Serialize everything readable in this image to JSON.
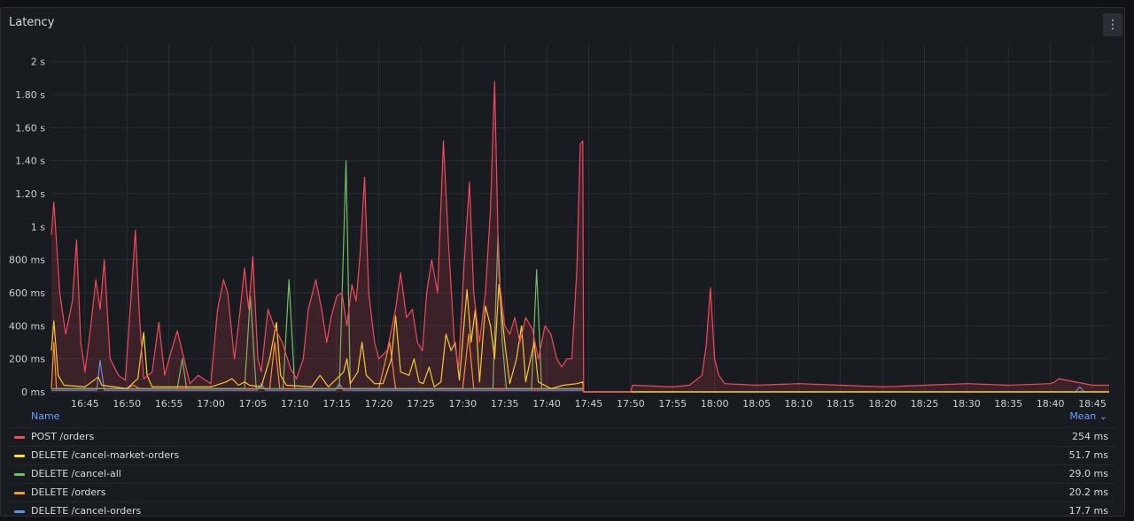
{
  "panel": {
    "title": "Latency",
    "menu_icon": "kebab-menu-icon"
  },
  "legend": {
    "name_header": "Name",
    "mean_header": "Mean ⌄"
  },
  "chart_data": {
    "type": "line",
    "title": "Latency",
    "y_unit": "s",
    "ylim": [
      0,
      2.1
    ],
    "y_ticks": [
      0,
      0.2,
      0.4,
      0.6,
      0.8,
      1.0,
      1.2,
      1.4,
      1.6,
      1.8,
      2.0
    ],
    "y_tick_labels": [
      "0 ms",
      "200 ms",
      "400 ms",
      "600 ms",
      "800 ms",
      "1 s",
      "1.20 s",
      "1.40 s",
      "1.60 s",
      "1.80 s",
      "2 s"
    ],
    "xlim": [
      "16:41",
      "18:47"
    ],
    "x_ticks": [
      "16:45",
      "16:50",
      "16:55",
      "17:00",
      "17:05",
      "17:10",
      "17:15",
      "17:20",
      "17:25",
      "17:30",
      "17:35",
      "17:40",
      "17:45",
      "17:50",
      "17:55",
      "18:00",
      "18:05",
      "18:10",
      "18:15",
      "18:20",
      "18:25",
      "18:30",
      "18:35",
      "18:40",
      "18:45"
    ],
    "grid": true,
    "legend_position": "bottom",
    "series": [
      {
        "name": "POST /orders",
        "color": "#f2495c",
        "mean": "254 ms",
        "fill": true,
        "points": [
          [
            "16:41",
            0.95
          ],
          [
            "16:41.3",
            1.15
          ],
          [
            "16:42",
            0.6
          ],
          [
            "16:42.7",
            0.35
          ],
          [
            "16:43.5",
            0.55
          ],
          [
            "16:44",
            0.92
          ],
          [
            "16:44.5",
            0.3
          ],
          [
            "16:45",
            0.12
          ],
          [
            "16:45.7",
            0.4
          ],
          [
            "16:46.3",
            0.68
          ],
          [
            "16:46.8",
            0.5
          ],
          [
            "16:47.3",
            0.8
          ],
          [
            "16:48",
            0.2
          ],
          [
            "16:49",
            0.1
          ],
          [
            "16:49.8",
            0.07
          ],
          [
            "16:50.5",
            0.58
          ],
          [
            "16:51",
            0.98
          ],
          [
            "16:51.5",
            0.45
          ],
          [
            "16:52",
            0.08
          ],
          [
            "16:53",
            0.12
          ],
          [
            "16:53.8",
            0.42
          ],
          [
            "16:54.5",
            0.1
          ],
          [
            "16:55.3",
            0.25
          ],
          [
            "16:56",
            0.37
          ],
          [
            "16:56.8",
            0.2
          ],
          [
            "16:57.5",
            0.05
          ],
          [
            "16:58.5",
            0.1
          ],
          [
            "17:00",
            0.05
          ],
          [
            "17:00.8",
            0.5
          ],
          [
            "17:01.5",
            0.68
          ],
          [
            "17:02",
            0.6
          ],
          [
            "17:02.8",
            0.2
          ],
          [
            "17:03.5",
            0.5
          ],
          [
            "17:04",
            0.75
          ],
          [
            "17:04.5",
            0.5
          ],
          [
            "17:05",
            0.82
          ],
          [
            "17:05.6",
            0.2
          ],
          [
            "17:06",
            0.12
          ],
          [
            "17:06.8",
            0.5
          ],
          [
            "17:07.5",
            0.4
          ],
          [
            "17:08.5",
            0.3
          ],
          [
            "17:09.5",
            0.14
          ],
          [
            "17:10.2",
            0.08
          ],
          [
            "17:11",
            0.2
          ],
          [
            "17:11.6",
            0.5
          ],
          [
            "17:12.5",
            0.68
          ],
          [
            "17:13.2",
            0.5
          ],
          [
            "17:13.8",
            0.3
          ],
          [
            "17:14.3",
            0.45
          ],
          [
            "17:15",
            0.58
          ],
          [
            "17:15.6",
            0.6
          ],
          [
            "17:16.2",
            0.4
          ],
          [
            "17:16.8",
            0.65
          ],
          [
            "17:17.3",
            0.55
          ],
          [
            "17:17.8",
            0.85
          ],
          [
            "17:18.3",
            1.3
          ],
          [
            "17:18.8",
            0.6
          ],
          [
            "17:19.5",
            0.3
          ],
          [
            "17:20",
            0.2
          ],
          [
            "17:21",
            0.25
          ],
          [
            "17:22",
            0.5
          ],
          [
            "17:22.6",
            0.72
          ],
          [
            "17:23.3",
            0.45
          ],
          [
            "17:24",
            0.5
          ],
          [
            "17:24.6",
            0.3
          ],
          [
            "17:25.2",
            0.25
          ],
          [
            "17:25.7",
            0.6
          ],
          [
            "17:26.3",
            0.8
          ],
          [
            "17:27",
            0.6
          ],
          [
            "17:27.7",
            1.52
          ],
          [
            "17:28.3",
            0.9
          ],
          [
            "17:29",
            0.3
          ],
          [
            "17:29.5",
            0.15
          ],
          [
            "17:30.2",
            0.8
          ],
          [
            "17:30.8",
            1.27
          ],
          [
            "17:31.3",
            0.6
          ],
          [
            "17:32",
            0.3
          ],
          [
            "17:32.7",
            0.6
          ],
          [
            "17:33.3",
            1.1
          ],
          [
            "17:33.8",
            1.88
          ],
          [
            "17:34.3",
            0.7
          ],
          [
            "17:35",
            0.4
          ],
          [
            "17:35.6",
            0.35
          ],
          [
            "17:36.2",
            0.45
          ],
          [
            "17:36.8",
            0.3
          ],
          [
            "17:37.5",
            0.45
          ],
          [
            "17:38.3",
            0.38
          ],
          [
            "17:39",
            0.2
          ],
          [
            "17:39.8",
            0.4
          ],
          [
            "17:40.5",
            0.35
          ],
          [
            "17:41.2",
            0.2
          ],
          [
            "17:41.8",
            0.15
          ],
          [
            "17:42.4",
            0.2
          ],
          [
            "17:43",
            0.2
          ],
          [
            "17:43.6",
            0.75
          ],
          [
            "17:44",
            1.5
          ],
          [
            "17:44.3",
            1.52
          ],
          [
            "17:44.4",
            0.0
          ],
          [
            "17:50",
            0.0
          ],
          [
            "17:50.2",
            0.04
          ],
          [
            "17:55",
            0.03
          ],
          [
            "17:57",
            0.04
          ],
          [
            "17:58.5",
            0.1
          ],
          [
            "17:59",
            0.28
          ],
          [
            "17:59.5",
            0.63
          ],
          [
            "18:00",
            0.2
          ],
          [
            "18:00.5",
            0.1
          ],
          [
            "18:01.2",
            0.05
          ],
          [
            "18:05",
            0.04
          ],
          [
            "18:10",
            0.05
          ],
          [
            "18:15",
            0.04
          ],
          [
            "18:20",
            0.03
          ],
          [
            "18:25",
            0.04
          ],
          [
            "18:30",
            0.05
          ],
          [
            "18:35",
            0.04
          ],
          [
            "18:40",
            0.05
          ],
          [
            "18:40.5",
            0.06
          ],
          [
            "18:41",
            0.08
          ],
          [
            "18:45",
            0.04
          ],
          [
            "18:47",
            0.04
          ]
        ]
      },
      {
        "name": "DELETE /cancel-market-orders",
        "color": "#fade2a",
        "mean": "51.7 ms",
        "fill": false,
        "points": [
          [
            "16:41",
            0.25
          ],
          [
            "16:41.3",
            0.43
          ],
          [
            "16:41.8",
            0.1
          ],
          [
            "16:42.5",
            0.04
          ],
          [
            "16:45",
            0.03
          ],
          [
            "16:46.6",
            0.09
          ],
          [
            "16:47",
            0.04
          ],
          [
            "16:50",
            0.02
          ],
          [
            "16:51.3",
            0.08
          ],
          [
            "16:52",
            0.36
          ],
          [
            "16:52.4",
            0.1
          ],
          [
            "16:53",
            0.03
          ],
          [
            "17:00",
            0.03
          ],
          [
            "17:01.8",
            0.06
          ],
          [
            "17:02.5",
            0.08
          ],
          [
            "17:03.3",
            0.04
          ],
          [
            "17:04",
            0.06
          ],
          [
            "17:04.6",
            0.04
          ],
          [
            "17:06",
            0.03
          ],
          [
            "17:07",
            0.2
          ],
          [
            "17:07.8",
            0.42
          ],
          [
            "17:08.3",
            0.1
          ],
          [
            "17:09",
            0.04
          ],
          [
            "17:12",
            0.03
          ],
          [
            "17:13",
            0.1
          ],
          [
            "17:14",
            0.03
          ],
          [
            "17:15.8",
            0.12
          ],
          [
            "17:16.2",
            0.2
          ],
          [
            "17:16.6",
            0.05
          ],
          [
            "17:17.5",
            0.12
          ],
          [
            "17:18",
            0.3
          ],
          [
            "17:18.5",
            0.1
          ],
          [
            "17:19.5",
            0.05
          ],
          [
            "17:20.5",
            0.05
          ],
          [
            "17:21.5",
            0.2
          ],
          [
            "17:22",
            0.46
          ],
          [
            "17:22.6",
            0.12
          ],
          [
            "17:23.6",
            0.1
          ],
          [
            "17:24.2",
            0.2
          ],
          [
            "17:24.8",
            0.06
          ],
          [
            "17:25.3",
            0.05
          ],
          [
            "17:26",
            0.15
          ],
          [
            "17:26.6",
            0.03
          ],
          [
            "17:27.4",
            0.06
          ],
          [
            "17:28",
            0.35
          ],
          [
            "17:28.6",
            0.25
          ],
          [
            "17:29.1",
            0.3
          ],
          [
            "17:29.6",
            0.07
          ],
          [
            "17:30.5",
            0.62
          ],
          [
            "17:31",
            0.3
          ],
          [
            "17:31.5",
            0.5
          ],
          [
            "17:32",
            0.06
          ],
          [
            "17:32.7",
            0.52
          ],
          [
            "17:33.3",
            0.4
          ],
          [
            "17:33.8",
            0.2
          ],
          [
            "17:34.3",
            0.65
          ],
          [
            "17:35",
            0.3
          ],
          [
            "17:35.6",
            0.05
          ],
          [
            "17:36.4",
            0.2
          ],
          [
            "17:37",
            0.4
          ],
          [
            "17:37.5",
            0.06
          ],
          [
            "17:38.5",
            0.3
          ],
          [
            "17:39",
            0.06
          ],
          [
            "17:40.5",
            0.02
          ],
          [
            "17:42",
            0.04
          ],
          [
            "17:43.6",
            0.05
          ],
          [
            "17:44.3",
            0.06
          ],
          [
            "17:44.4",
            0.0
          ],
          [
            "18:47",
            0.0
          ]
        ]
      },
      {
        "name": "DELETE /cancel-all",
        "color": "#73bf69",
        "mean": "29.0 ms",
        "fill": false,
        "points": [
          [
            "16:41",
            0.02
          ],
          [
            "16:56",
            0.02
          ],
          [
            "16:56.6",
            0.2
          ],
          [
            "16:57.1",
            0.02
          ],
          [
            "17:04",
            0.02
          ],
          [
            "17:04.7",
            0.58
          ],
          [
            "17:05.4",
            0.02
          ],
          [
            "17:08.6",
            0.02
          ],
          [
            "17:09.3",
            0.68
          ],
          [
            "17:10",
            0.02
          ],
          [
            "17:15.3",
            0.02
          ],
          [
            "17:16.1",
            1.4
          ],
          [
            "17:16.6",
            0.02
          ],
          [
            "17:33.6",
            0.02
          ],
          [
            "17:34.2",
            0.95
          ],
          [
            "17:34.7",
            0.3
          ],
          [
            "17:35.2",
            0.02
          ],
          [
            "17:38.2",
            0.02
          ],
          [
            "17:38.8",
            0.74
          ],
          [
            "17:39.4",
            0.02
          ],
          [
            "17:44.3",
            0.02
          ],
          [
            "17:44.4",
            0.0
          ],
          [
            "18:47",
            0.0
          ]
        ]
      },
      {
        "name": "DELETE /orders",
        "color": "#ff9830",
        "mean": "20.2 ms",
        "fill": false,
        "points": [
          [
            "16:41",
            0.02
          ],
          [
            "16:41.3",
            0.3
          ],
          [
            "16:41.6",
            0.02
          ],
          [
            "16:50",
            0.02
          ],
          [
            "16:50.8",
            0.04
          ],
          [
            "16:51.5",
            0.02
          ],
          [
            "17:00",
            0.02
          ],
          [
            "17:07",
            0.02
          ],
          [
            "17:07.6",
            0.3
          ],
          [
            "17:08.2",
            0.02
          ],
          [
            "17:20",
            0.02
          ],
          [
            "17:21.3",
            0.3
          ],
          [
            "17:22",
            0.02
          ],
          [
            "17:30",
            0.02
          ],
          [
            "17:30.7",
            0.35
          ],
          [
            "17:31.3",
            0.02
          ],
          [
            "17:44.3",
            0.02
          ],
          [
            "17:44.4",
            0.0
          ],
          [
            "18:47",
            0.0
          ]
        ]
      },
      {
        "name": "DELETE /cancel-orders",
        "color": "#5794f2",
        "mean": "17.7 ms",
        "fill": false,
        "points": [
          [
            "16:41",
            0.01
          ],
          [
            "16:46.4",
            0.01
          ],
          [
            "16:46.8",
            0.19
          ],
          [
            "16:47.3",
            0.01
          ],
          [
            "17:05.5",
            0.01
          ],
          [
            "17:06",
            0.05
          ],
          [
            "17:06.5",
            0.01
          ],
          [
            "17:14.8",
            0.01
          ],
          [
            "17:15.3",
            0.05
          ],
          [
            "17:15.8",
            0.01
          ],
          [
            "17:44.3",
            0.01
          ],
          [
            "17:44.4",
            0.0
          ],
          [
            "18:43",
            0.0
          ],
          [
            "18:43.5",
            0.03
          ],
          [
            "18:44",
            0.0
          ],
          [
            "18:47",
            0.0
          ]
        ]
      }
    ]
  }
}
